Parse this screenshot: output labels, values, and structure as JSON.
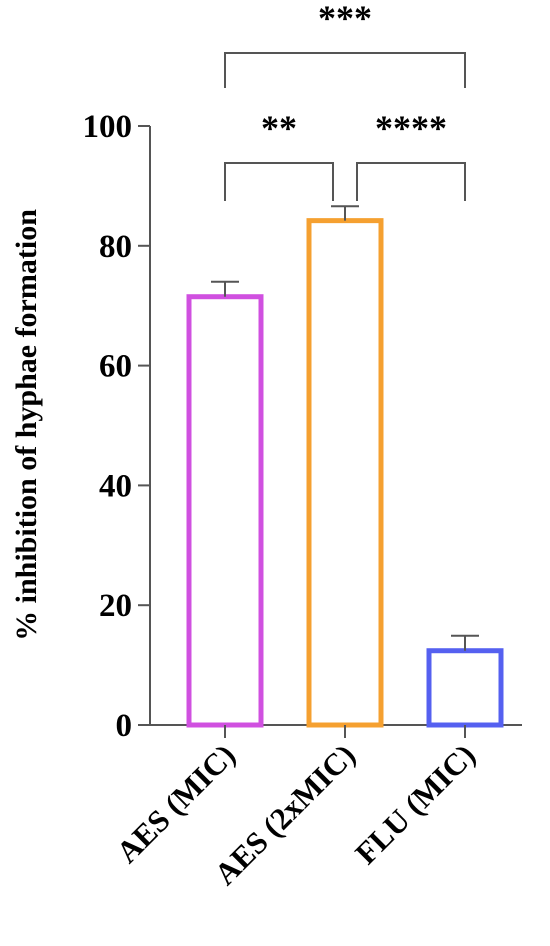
{
  "chart_data": {
    "type": "bar",
    "title": "",
    "xlabel": "",
    "ylabel": "% inhibition of hyphae formation",
    "ylim": [
      0,
      100
    ],
    "yticks": [
      0,
      20,
      40,
      60,
      80,
      100
    ],
    "categories": [
      "AES (MIC)",
      "AES (2xMIC)",
      "FLU (MIC)"
    ],
    "values": [
      71.5,
      84.2,
      12.4
    ],
    "errors": [
      2.5,
      2.4,
      2.5
    ],
    "colors": [
      "#d050e0",
      "#f5a030",
      "#5560f0"
    ],
    "grid": false,
    "legend": "none",
    "bar_style": "outline",
    "significance": [
      {
        "from": 0,
        "to": 2,
        "label": "***"
      },
      {
        "from": 0,
        "to": 1,
        "label": "**"
      },
      {
        "from": 1,
        "to": 2,
        "label": "****"
      }
    ]
  }
}
